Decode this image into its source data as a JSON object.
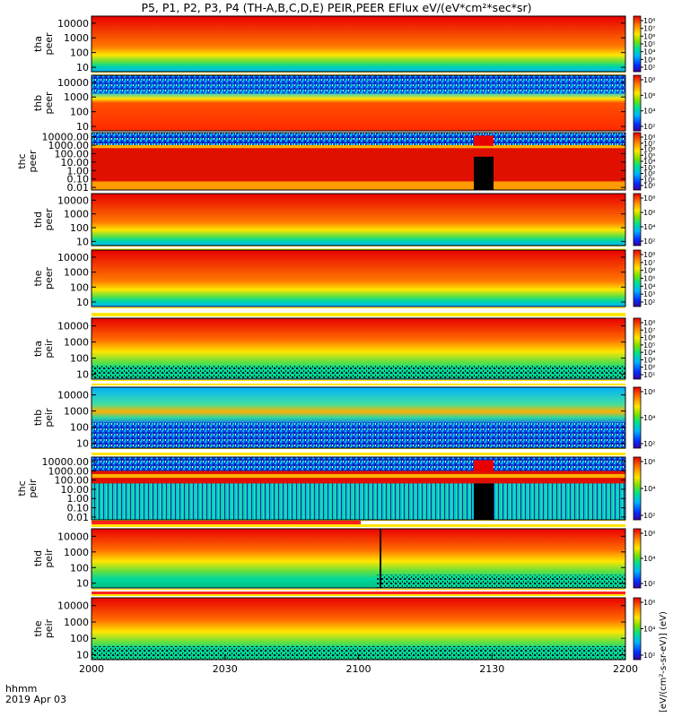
{
  "title": "P5, P1, P2, P3, P4 (TH-A,B,C,D,E) PEIR,PEER EFlux eV/(eV*cm²*sec*sr)",
  "chart_data": {
    "type": "heatmap",
    "title": "P5, P1, P2, P3, P4 (TH-A,B,C,D,E) PEIR,PEER EFlux eV/(eV*cm²*sec*sr)",
    "x_label_line1": "hhmm",
    "x_label_line2": "2019 Apr 03",
    "x_ticks": [
      "2000",
      "2030",
      "2100",
      "2130",
      "2200"
    ],
    "x_range": [
      "20:00",
      "22:00"
    ],
    "colorbar_label": "[eV/(cm²-s-sr-eV)] (eV)",
    "panels": [
      {
        "probe": "tha",
        "species": "peer",
        "label_line1": "tha",
        "label_line2": "peer",
        "y_ticks": [
          "10000",
          "1000",
          "100",
          "10"
        ],
        "y_range": [
          5,
          30000
        ],
        "y_scale": "log",
        "colorbar_ticks": [
          "10⁸",
          "10⁷",
          "10⁶",
          "10⁵",
          "10⁴",
          "10³",
          "10²"
        ]
      },
      {
        "probe": "thb",
        "species": "peer",
        "label_line1": "thb",
        "label_line2": "peer",
        "y_ticks": [
          "10000",
          "1000",
          "100",
          "10"
        ],
        "y_range": [
          5,
          30000
        ],
        "y_scale": "log",
        "colorbar_ticks": [
          "10⁸",
          "10⁶",
          "10⁴",
          "10²"
        ]
      },
      {
        "probe": "thc",
        "species": "peer",
        "label_line1": "thc",
        "label_line2": "peer",
        "y_ticks": [
          "10000.00",
          "1000.00",
          "100.00",
          "10.00",
          "1.00",
          "0.10",
          "0.01"
        ],
        "y_range": [
          0.005,
          30000
        ],
        "y_scale": "log",
        "colorbar_ticks": [
          "10⁸",
          "10⁷",
          "10⁶",
          "10⁵",
          "10⁴",
          "10³",
          "10²",
          "10¹",
          "10⁰"
        ]
      },
      {
        "probe": "thd",
        "species": "peer",
        "label_line1": "thd",
        "label_line2": "peer",
        "y_ticks": [
          "10000",
          "1000",
          "100",
          "10"
        ],
        "y_range": [
          5,
          30000
        ],
        "y_scale": "log",
        "colorbar_ticks": [
          "10⁸",
          "10⁶",
          "10⁴",
          "10²"
        ]
      },
      {
        "probe": "the",
        "species": "peer",
        "label_line1": "the",
        "label_line2": "peer",
        "y_ticks": [
          "10000",
          "1000",
          "100",
          "10"
        ],
        "y_range": [
          5,
          30000
        ],
        "y_scale": "log",
        "colorbar_ticks": [
          "10⁸",
          "10⁷",
          "10⁶",
          "10⁵",
          "10⁴",
          "10³",
          "10²"
        ]
      },
      {
        "probe": "tha",
        "species": "peir",
        "label_line1": "tha",
        "label_line2": "peir",
        "y_ticks": [
          "10000",
          "1000",
          "100",
          "10"
        ],
        "y_range": [
          5,
          30000
        ],
        "y_scale": "log",
        "colorbar_ticks": [
          "10⁸",
          "10⁷",
          "10⁶",
          "10⁵",
          "10⁴",
          "10³",
          "10²",
          "10¹"
        ]
      },
      {
        "probe": "thb",
        "species": "peir",
        "label_line1": "thb",
        "label_line2": "peir",
        "y_ticks": [
          "10000",
          "1000",
          "100",
          "10"
        ],
        "y_range": [
          5,
          30000
        ],
        "y_scale": "log",
        "colorbar_ticks": [
          "10⁶",
          "10⁴",
          "10²"
        ]
      },
      {
        "probe": "thc",
        "species": "peir",
        "label_line1": "thc",
        "label_line2": "peir",
        "y_ticks": [
          "10000.00",
          "1000.00",
          "100.00",
          "10.00",
          "1.00",
          "0.10",
          "0.01"
        ],
        "y_range": [
          0.005,
          30000
        ],
        "y_scale": "log",
        "colorbar_ticks": [
          "10⁶",
          "10⁴",
          "10²"
        ]
      },
      {
        "probe": "thd",
        "species": "peir",
        "label_line1": "thd",
        "label_line2": "peir",
        "y_ticks": [
          "10000",
          "1000",
          "100",
          "10"
        ],
        "y_range": [
          5,
          30000
        ],
        "y_scale": "log",
        "colorbar_ticks": [
          "10⁶",
          "10⁴",
          "10²"
        ]
      },
      {
        "probe": "the",
        "species": "peir",
        "label_line1": "the",
        "label_line2": "peir",
        "y_ticks": [
          "10000",
          "1000",
          "100",
          "10"
        ],
        "y_range": [
          5,
          30000
        ],
        "y_scale": "log",
        "colorbar_ticks": [
          "10⁶",
          "10⁴",
          "10²"
        ]
      }
    ]
  }
}
